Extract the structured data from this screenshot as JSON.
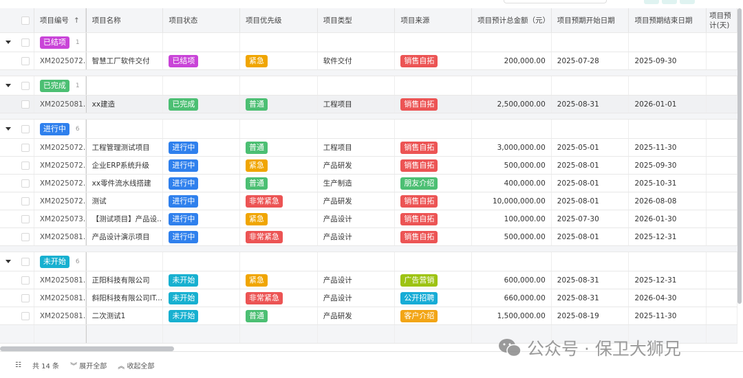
{
  "columns": [
    "项目编号",
    "项目名称",
    "项目状态",
    "项目优先级",
    "项目类型",
    "项目来源",
    "项目预计总金额（元）",
    "项目预期开始日期",
    "项目预期结束日期",
    "项目预计(天)"
  ],
  "sort_icon": "arrow-up-icon",
  "colors": {
    "已结项": "#c944d8",
    "已完成": "#4cbf73",
    "进行中": "#2f80ed",
    "未开始": "#17b0d0",
    "紧急": "#f0a500",
    "非常紧急": "#ec5454",
    "普通": "#4cbf73",
    "销售自拓": "#ec5454",
    "朋友介绍": "#4cbf73",
    "广告营销": "#9dc313",
    "公开招聘": "#17acd6",
    "客户介绍": "#f2a516"
  },
  "groups": [
    {
      "label": "已结项",
      "count": "1",
      "rows": [
        [
          "XM2025072...",
          "智慧工厂软件交付",
          "已结项",
          "紧急",
          "软件交付",
          "销售自拓",
          "200,000.00",
          "2025-07-28",
          "2025-09-30"
        ]
      ]
    },
    {
      "label": "已完成",
      "count": "1",
      "rows": [
        [
          "XM2025081...",
          "xx建造",
          "已完成",
          "普通",
          "工程项目",
          "销售自拓",
          "2,500,000.00",
          "2025-08-31",
          "2026-01-01"
        ]
      ]
    },
    {
      "label": "进行中",
      "count": "6",
      "rows": [
        [
          "XM2025072...",
          "工程管理测试项目",
          "进行中",
          "普通",
          "工程项目",
          "销售自拓",
          "3,000,000.00",
          "2025-05-01",
          "2025-11-30"
        ],
        [
          "XM2025072...",
          "企业ERP系统升级",
          "进行中",
          "紧急",
          "产品研发",
          "销售自拓",
          "500,000.00",
          "2025-08-01",
          "2025-09-30"
        ],
        [
          "XM2025072...",
          "xx零件流水线搭建",
          "进行中",
          "普通",
          "生产制造",
          "朋友介绍",
          "400,000.00",
          "2025-08-01",
          "2025-10-31"
        ],
        [
          "XM2025072...",
          "测试",
          "进行中",
          "非常紧急",
          "产品研发",
          "销售自拓",
          "10,000,000.00",
          "2025-08-01",
          "2026-08-08"
        ],
        [
          "XM2025073...",
          "【测试项目】产品设...",
          "进行中",
          "紧急",
          "产品设计",
          "销售自拓",
          "100,000.00",
          "2025-07-30",
          "2026-01-30"
        ],
        [
          "XM2025081...",
          "产品设计演示项目",
          "进行中",
          "非常紧急",
          "产品设计",
          "销售自拓",
          "500,000.00",
          "2025-08-01",
          "2025-12-31"
        ]
      ]
    },
    {
      "label": "未开始",
      "count": "6",
      "rows": [
        [
          "XM2025081...",
          "正阳科技有限公司",
          "未开始",
          "紧急",
          "产品设计",
          "广告营销",
          "600,000.00",
          "2025-08-31",
          "2025-12-31"
        ],
        [
          "XM2025081...",
          "斜阳科技有限公司IT...",
          "未开始",
          "非常紧急",
          "产品设计",
          "公开招聘",
          "660,000.00",
          "2025-08-31",
          "2026-04-30"
        ],
        [
          "XM2025081...",
          "二次测试1",
          "未开始",
          "普通",
          "产品研发",
          "客户介绍",
          "1,500,000.00",
          "2025-08-19",
          "2025-11-30"
        ]
      ]
    }
  ],
  "footer": {
    "total": "共 14 条",
    "expand_all": "展开全部",
    "collapse_all": "收起全部"
  },
  "watermark": "公众号 · 保卫大狮兄"
}
